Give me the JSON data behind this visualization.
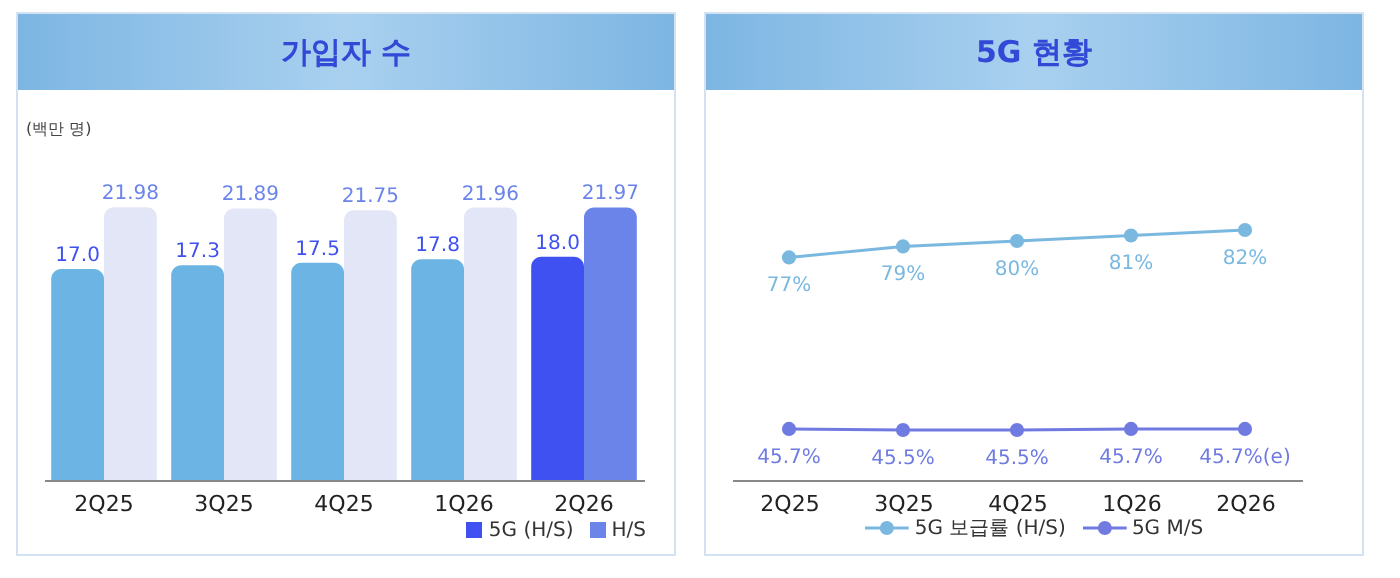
{
  "chart_data": [
    {
      "type": "bar",
      "title": "가입자 수",
      "annotations": [
        "(백만 명)"
      ],
      "categories": [
        "2Q25",
        "3Q25",
        "4Q25",
        "1Q26",
        "2Q26"
      ],
      "legend": "bottom right",
      "series": [
        {
          "name": "5G (H/S)",
          "color": "#3f51f0",
          "colors": [
            "#6cb4e4",
            "#6cb4e4",
            "#6cb4e4",
            "#6cb4e4",
            "#3f51f0"
          ],
          "values": [
            17.0,
            17.3,
            17.5,
            17.8,
            18.0
          ],
          "value_labels": [
            "17.0",
            "17.3",
            "17.5",
            "17.8",
            "18.0"
          ]
        },
        {
          "name": "H/S",
          "color": "#6b84ea",
          "colors": [
            "#e3e6f7",
            "#e3e6f7",
            "#e3e6f7",
            "#e3e6f7",
            "#6b84ea"
          ],
          "values": [
            21.98,
            21.89,
            21.75,
            21.96,
            21.97
          ],
          "value_labels": [
            "21.98",
            "21.89",
            "21.75",
            "21.96",
            "21.97"
          ]
        }
      ]
    },
    {
      "type": "line",
      "title": "5G 현황",
      "categories": [
        "2Q25",
        "3Q25",
        "4Q25",
        "1Q26",
        "2Q26"
      ],
      "legend": "bottom",
      "marker": "circle",
      "series": [
        {
          "name": "5G 보급률 (H/S)",
          "color": "#7ab8e0",
          "values": [
            77,
            79,
            80,
            81,
            82
          ],
          "value_labels": [
            "77%",
            "79%",
            "80%",
            "81%",
            "82%"
          ]
        },
        {
          "name": "5G M/S",
          "color": "#6f7be0",
          "values": [
            45.7,
            45.5,
            45.5,
            45.7,
            45.7
          ],
          "value_labels": [
            "45.7%",
            "45.5%",
            "45.5%",
            "45.7%",
            "45.7%(e)"
          ]
        }
      ]
    }
  ]
}
